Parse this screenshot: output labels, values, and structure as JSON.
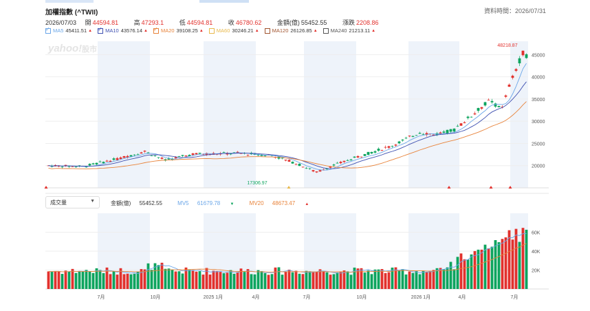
{
  "header": {
    "title": "加權指數 (^TWII)",
    "data_time_label": "資料時間：2026/07/31",
    "date": "2026/07/03"
  },
  "quote": {
    "open_label": "開",
    "open": "44594.81",
    "high_label": "高",
    "high": "47293.1",
    "low_label": "低",
    "low": "44594.81",
    "close_label": "收",
    "close": "46780.62",
    "amount_label": "金額(億)",
    "amount": "55452.55",
    "change_label": "漲跌",
    "change": "2208.86"
  },
  "ma": [
    {
      "label": "MA5",
      "value": "45411.51",
      "dir": "up",
      "color": "#6aa6e8",
      "checked": true
    },
    {
      "label": "MA10",
      "value": "43576.14",
      "dir": "up",
      "color": "#3d4fb0",
      "checked": true
    },
    {
      "label": "MA20",
      "value": "39108.25",
      "dir": "up",
      "color": "#e8833a",
      "checked": true
    },
    {
      "label": "MA60",
      "value": "30246.21",
      "dir": "up",
      "color": "#e8b84a",
      "checked": false
    },
    {
      "label": "MA120",
      "value": "26126.85",
      "dir": "up",
      "color": "#a0522d",
      "checked": false
    },
    {
      "label": "MA240",
      "value": "21213.11",
      "dir": "up",
      "color": "#555555",
      "checked": false
    }
  ],
  "watermark": "yahoo!股市",
  "annotations": {
    "max": "48218.87",
    "min": "17306.97"
  },
  "volume": {
    "selector": "成交量",
    "amount_label": "金額(億)",
    "amount": "55452.55",
    "mv5_label": "MV5",
    "mv5": "61679.78",
    "mv5_dir": "down",
    "mv20_label": "MV20",
    "mv20": "48673.47",
    "mv20_dir": "up"
  },
  "colors": {
    "up": "#e2312d",
    "down": "#0da45e",
    "band": "#eef3fa"
  },
  "chart_data": {
    "type": "candlestick",
    "price_y_ticks": [
      "45000",
      "40000",
      "35000",
      "30000",
      "25000",
      "20000"
    ],
    "volume_y_ticks": [
      "60K",
      "40K",
      "20K"
    ],
    "x_ticks": [
      "7月",
      "10月",
      "2025 1月",
      "4月",
      "7月",
      "10月",
      "2026 1月",
      "4月",
      "7月"
    ]
  }
}
